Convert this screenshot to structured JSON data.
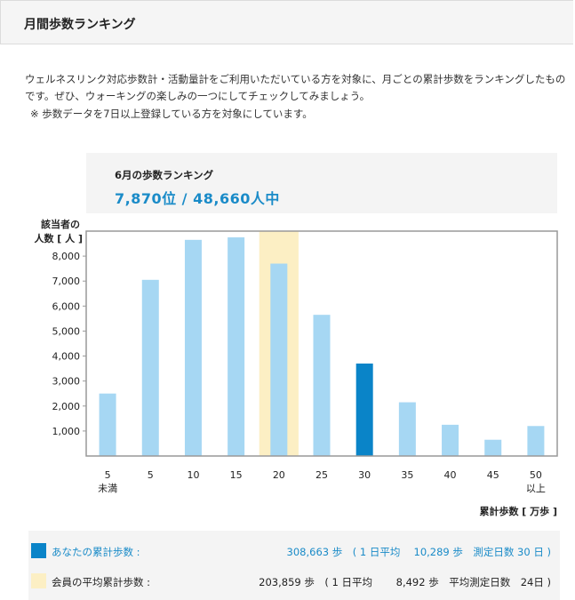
{
  "header": {
    "title": "月間歩数ランキング"
  },
  "intro": {
    "text": "ウェルネスリンク対応歩数計・活動量計をご利用いただいている方を対象に、月ごとの累計歩数をランキングしたものです。ぜひ、ウォーキングの楽しみの一つにしてチェックしてみましょう。",
    "note": "※ 歩数データを7日以上登録している方を対象にしています。"
  },
  "ranking": {
    "title": "6月の歩数ランキング",
    "value": "7,870位 / 48,660人中"
  },
  "chart_data": {
    "type": "bar",
    "ylabel_line1": "該当者の",
    "ylabel_line2": "人数 [ 人 ]",
    "xlabel": "累計歩数 [ 万歩 ]",
    "categories": [
      "5 未満",
      "5",
      "10",
      "15",
      "20",
      "25",
      "30",
      "35",
      "40",
      "45",
      "50 以上"
    ],
    "category_lines": [
      [
        "5",
        "未満"
      ],
      [
        "5"
      ],
      [
        "10"
      ],
      [
        "15"
      ],
      [
        "20"
      ],
      [
        "25"
      ],
      [
        "30"
      ],
      [
        "35"
      ],
      [
        "40"
      ],
      [
        "45"
      ],
      [
        "50",
        "以上"
      ]
    ],
    "values": [
      2500,
      7050,
      8650,
      8750,
      7700,
      5650,
      3700,
      2150,
      1250,
      650,
      1200
    ],
    "yticks": [
      1000,
      2000,
      3000,
      4000,
      5000,
      6000,
      7000,
      8000
    ],
    "ytick_labels": [
      "1,000",
      "2,000",
      "3,000",
      "4,000",
      "5,000",
      "6,000",
      "7,000",
      "8,000"
    ],
    "ylim": [
      0,
      9000
    ],
    "highlight_bin_index": 4,
    "user_bin_index": 6,
    "colors": {
      "bar": "#a6d7f3",
      "user_bar": "#0a84c8",
      "highlight_band": "#fcefc4",
      "frame": "#999999"
    }
  },
  "summary": {
    "you_label": "あなたの累計歩数 :",
    "you_values": "308,663 歩　( 1 日平均　 10,289 歩　測定日数 30 日 )",
    "avg_label": "会員の平均累計歩数 :",
    "avg_values": "203,859 歩　( 1 日平均　　 8,492 歩　平均測定日数　24日 )"
  }
}
